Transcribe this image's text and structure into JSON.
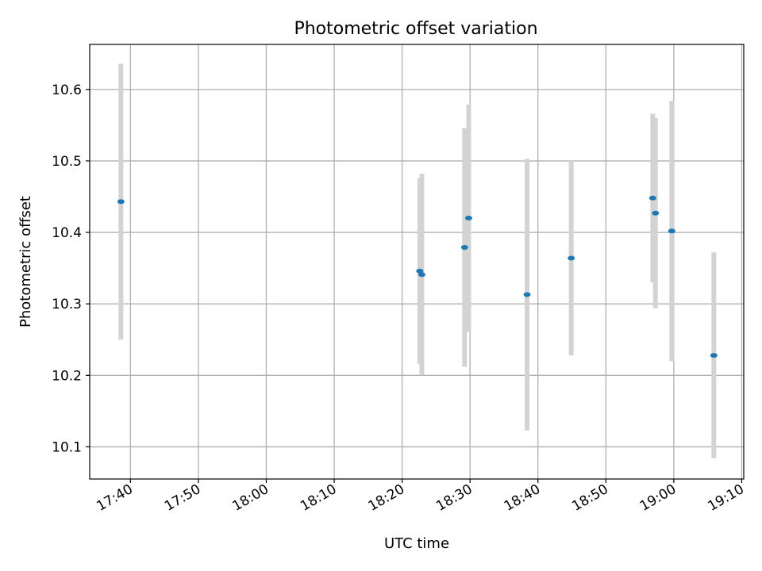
{
  "chart_data": {
    "type": "scatter",
    "title": "Photometric offset variation",
    "xlabel": "UTC time",
    "ylabel": "Photometric offset",
    "x_tick_labels": [
      "17:40",
      "17:50",
      "18:00",
      "18:10",
      "18:20",
      "18:30",
      "18:40",
      "18:50",
      "19:00",
      "19:10"
    ],
    "x_ticks_minutes": [
      1060,
      1070,
      1080,
      1090,
      1100,
      1110,
      1120,
      1130,
      1140,
      1150
    ],
    "y_tick_labels": [
      "10.1",
      "10.2",
      "10.3",
      "10.4",
      "10.5",
      "10.6"
    ],
    "y_ticks": [
      10.1,
      10.2,
      10.3,
      10.4,
      10.5,
      10.6
    ],
    "xlim_minutes": [
      1054,
      1150.3
    ],
    "ylim": [
      10.055,
      10.663
    ],
    "grid": true,
    "colors": {
      "points": "#1f77b4",
      "errorbars": "#d3d3d3",
      "grid": "#b0b0b0"
    },
    "points": [
      {
        "time": "17:38:36",
        "y": 10.443,
        "yerr": 0.193
      },
      {
        "time": "18:22:36",
        "y": 10.346,
        "yerr": 0.13
      },
      {
        "time": "18:22:54",
        "y": 10.341,
        "yerr": 0.141
      },
      {
        "time": "18:29:12",
        "y": 10.379,
        "yerr": 0.167
      },
      {
        "time": "18:29:48",
        "y": 10.42,
        "yerr": 0.159
      },
      {
        "time": "18:38:24",
        "y": 10.313,
        "yerr": 0.19
      },
      {
        "time": "18:44:54",
        "y": 10.364,
        "yerr": 0.136
      },
      {
        "time": "18:56:54",
        "y": 10.448,
        "yerr": 0.118
      },
      {
        "time": "18:57:18",
        "y": 10.427,
        "yerr": 0.133
      },
      {
        "time": "18:59:42",
        "y": 10.402,
        "yerr": 0.182
      },
      {
        "time": "19:05:54",
        "y": 10.228,
        "yerr": 0.144
      }
    ]
  }
}
